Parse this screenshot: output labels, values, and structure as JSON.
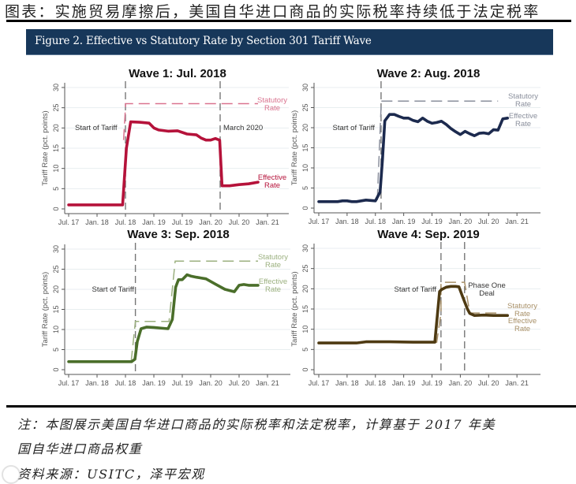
{
  "header": {
    "title": "图表：实施贸易摩擦后，美国自华进口商品的实际税率持续低于法定税率"
  },
  "figure_banner": {
    "title": "Figure 2. Effective vs Statutory Rate by Section 301 Tariff Wave",
    "color": "#17375a"
  },
  "footer": {
    "note_line1": "注：本图展示美国自华进口商品的实际税率和法定税率，计算基于 2017 年美",
    "note_line2": "国自华进口商品权重",
    "source": "资料来源：USITC，泽平宏观"
  },
  "chart_data": [
    {
      "type": "line",
      "title": "Wave 1: Jul. 2018",
      "xlabel": "",
      "ylabel": "Tariff Rate (pct. points)",
      "ylim": [
        0,
        30
      ],
      "yticks": [
        0,
        5,
        10,
        15,
        20,
        25,
        30
      ],
      "xticks": [
        "Jul. 17",
        "Jan. 18",
        "Jul. 18",
        "Jan. 19",
        "Jul. 19",
        "Jan. 20",
        "Jul. 20",
        "Jan. 21"
      ],
      "x_unit": "months since Jul. 2017",
      "grid": true,
      "color_effective": "#b5123a",
      "color_statutory": "#d9738f",
      "vlines": [
        {
          "x": 12,
          "label": "Start of Tariff"
        },
        {
          "x": 32,
          "label": "March 2020"
        }
      ],
      "series": [
        {
          "name": "Statutory Rate",
          "style": "dashed",
          "x": [
            11.6,
            12,
            12,
            40
          ],
          "values": [
            17,
            25,
            26,
            26
          ]
        },
        {
          "name": "Effective Rate",
          "style": "solid",
          "x": [
            0,
            11.4,
            12.2,
            13.1,
            15,
            17,
            18,
            19,
            21,
            23,
            25,
            27,
            28,
            29,
            30,
            31,
            31.4,
            31.9,
            32.4,
            34,
            36,
            38,
            40
          ],
          "values": [
            1,
            1,
            15,
            21.5,
            21.4,
            21.2,
            20,
            19.5,
            19.2,
            19.3,
            18.5,
            18.3,
            17.5,
            17,
            17,
            17.4,
            17.2,
            17,
            5.7,
            5.7,
            6,
            6.2,
            6.6
          ]
        }
      ],
      "annotations": [
        "Start of Tariff",
        "March 2020",
        "Statutory Rate",
        "Effective Rate"
      ]
    },
    {
      "type": "line",
      "title": "Wave 2: Aug. 2018",
      "xlabel": "",
      "ylabel": "Tariff Rate (pct. points)",
      "ylim": [
        0,
        30
      ],
      "yticks": [
        0,
        5,
        10,
        15,
        20,
        25,
        30
      ],
      "xticks": [
        "Jul. 17",
        "Jan. 18",
        "Jul. 18",
        "Jan. 19",
        "Jul. 19",
        "Jan. 20",
        "Jul. 20",
        "Jan. 21"
      ],
      "x_unit": "months since Jul. 2017",
      "grid": true,
      "color_effective": "#1c2a4e",
      "color_statutory": "#8a8f9c",
      "vlines": [
        {
          "x": 13.2,
          "label": "Start of Tariff"
        }
      ],
      "series": [
        {
          "name": "Statutory Rate",
          "style": "dashed",
          "x": [
            12.4,
            13.2,
            13.2,
            38
          ],
          "values": [
            2,
            25,
            26.6,
            26.6
          ]
        },
        {
          "name": "Effective Rate",
          "style": "solid",
          "x": [
            0,
            4,
            5,
            6,
            7,
            8,
            10,
            11,
            12,
            13,
            13.5,
            14,
            15,
            16,
            17,
            18,
            19,
            20,
            21,
            22,
            23,
            24,
            25,
            26,
            27,
            28,
            29,
            30,
            31,
            32,
            33,
            34,
            35,
            36,
            37,
            38,
            39,
            40
          ],
          "values": [
            1.6,
            1.6,
            1.8,
            1.8,
            1.6,
            1.6,
            2,
            1.9,
            1.8,
            4,
            12,
            21.7,
            23.3,
            23.3,
            22.8,
            22.4,
            22.4,
            21.8,
            21.5,
            22.4,
            21.6,
            21.1,
            21.3,
            21.6,
            20.8,
            19.8,
            19.0,
            18.3,
            19.1,
            18.5,
            18.0,
            18.6,
            18.7,
            18.5,
            19.5,
            19.4,
            22.2,
            22.4
          ]
        }
      ],
      "annotations": [
        "Start of Tariff",
        "Statutory Rate",
        "Effective Rate"
      ]
    },
    {
      "type": "line",
      "title": "Wave 3: Sep. 2018",
      "xlabel": "",
      "ylabel": "Tariff Rate (pct. points)",
      "ylim": [
        0,
        30
      ],
      "yticks": [
        0,
        5,
        10,
        15,
        20,
        25,
        30
      ],
      "xticks": [
        "Jul. 17",
        "Jan. 18",
        "Jul. 18",
        "Jan. 19",
        "Jul. 19",
        "Jan. 20",
        "Jul. 20",
        "Jan. 21"
      ],
      "x_unit": "months since Jul. 2017",
      "grid": true,
      "color_effective": "#4a6e2a",
      "color_statutory": "#9bb07f",
      "vlines": [
        {
          "x": 14.1,
          "label": "Start of Tariff"
        }
      ],
      "series": [
        {
          "name": "Statutory Rate",
          "style": "dashed",
          "x": [
            13.2,
            14.1,
            21.2,
            22.5,
            40
          ],
          "values": [
            2,
            12,
            12,
            27,
            27
          ]
        },
        {
          "name": "Effective Rate",
          "style": "solid",
          "x": [
            0,
            13.3,
            14,
            14.5,
            15.3,
            16.5,
            18,
            20,
            21,
            21.9,
            22.6,
            23.2,
            24,
            25,
            25.8,
            27,
            29,
            31,
            33,
            35,
            36,
            37,
            38,
            39,
            40
          ],
          "values": [
            2,
            2,
            2.6,
            7,
            10.2,
            10.6,
            10.5,
            10.3,
            10.2,
            12.5,
            20.5,
            22.4,
            22.4,
            23.6,
            23.3,
            23.0,
            22.6,
            21.3,
            20.0,
            19.4,
            21.0,
            21.2,
            21.0,
            21.0,
            21.0
          ]
        }
      ],
      "annotations": [
        "Start of Tariff",
        "Statutory Rate",
        "Effective Rate"
      ]
    },
    {
      "type": "line",
      "title": "Wave 4: Sep. 2019",
      "xlabel": "",
      "ylabel": "Tariff Rate (pct. points)",
      "ylim": [
        0,
        30
      ],
      "yticks": [
        0,
        5,
        10,
        15,
        20,
        25,
        30
      ],
      "xticks": [
        "Jul. 17",
        "Jan. 18",
        "Jul. 18",
        "Jan. 19",
        "Jul. 19",
        "Jan. 20",
        "Jul. 20",
        "Jan. 21"
      ],
      "x_unit": "months since Jul. 2017",
      "grid": true,
      "color_effective": "#4e3a12",
      "color_statutory": "#a89068",
      "vlines": [
        {
          "x": 25.9,
          "label": "Start of Tariff"
        },
        {
          "x": 30.9,
          "label": "Phase One Deal"
        }
      ],
      "series": [
        {
          "name": "Statutory Rate",
          "style": "dashed",
          "x": [
            0,
            8,
            10,
            25,
            25.9,
            25.9,
            30.9,
            32,
            38
          ],
          "values": [
            6.5,
            6.5,
            6.8,
            6.8,
            14,
            21.6,
            21.6,
            14,
            14
          ]
        },
        {
          "name": "Effective Rate",
          "style": "solid",
          "x": [
            0,
            8,
            10,
            15,
            20,
            24.6,
            25.6,
            26,
            27,
            28,
            29,
            29.7,
            30.5,
            31.5,
            32,
            33,
            35,
            37,
            39,
            40
          ],
          "values": [
            6.6,
            6.6,
            6.9,
            6.9,
            6.8,
            6.8,
            19.3,
            19.8,
            20.4,
            20.6,
            20.6,
            20.5,
            18,
            15,
            13.9,
            13.4,
            13.5,
            13.4,
            13.4,
            13.4
          ]
        }
      ],
      "annotations": [
        "Start of Tariff",
        "Phase One Deal",
        "Statutory Rate",
        "Effective Rate"
      ]
    }
  ]
}
